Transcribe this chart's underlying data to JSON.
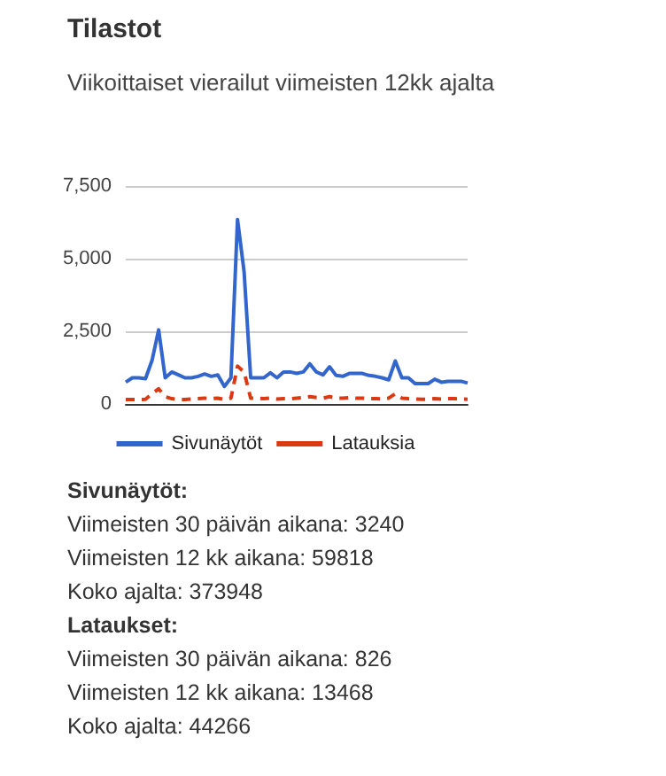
{
  "chart_data": {
    "type": "line",
    "title": "Tilastot",
    "subtitle": "Viikoittaiset vierailut viimeisten 12kk ajalta",
    "categories": [
      null,
      null,
      null,
      null,
      null,
      null,
      null,
      null,
      null,
      null,
      null,
      null,
      null,
      null,
      null,
      null,
      null,
      null,
      null,
      null,
      null,
      null,
      null,
      null,
      null,
      null,
      null,
      null,
      null,
      null,
      null,
      null,
      null,
      null,
      null,
      null,
      null,
      null,
      null,
      null,
      null,
      null,
      null,
      null,
      null,
      null,
      null,
      null,
      null,
      null,
      null,
      null,
      null
    ],
    "series": [
      {
        "name": "Sivunäytöt",
        "color": "#3366cc",
        "line_style": "solid",
        "values": [
          750,
          900,
          900,
          870,
          1500,
          2550,
          900,
          1100,
          1000,
          900,
          900,
          950,
          1030,
          950,
          1000,
          600,
          900,
          6350,
          4550,
          900,
          900,
          900,
          1070,
          900,
          1100,
          1100,
          1050,
          1100,
          1380,
          1100,
          1000,
          1280,
          980,
          950,
          1050,
          1050,
          1050,
          980,
          950,
          900,
          830,
          1480,
          900,
          900,
          700,
          700,
          700,
          850,
          750,
          780,
          780,
          780,
          720
        ]
      },
      {
        "name": "Latauksia",
        "color": "#dc3912",
        "line_style": "dashed",
        "values": [
          150,
          150,
          150,
          160,
          350,
          520,
          250,
          180,
          150,
          150,
          170,
          180,
          200,
          180,
          200,
          150,
          200,
          1300,
          1100,
          200,
          200,
          180,
          200,
          170,
          180,
          180,
          200,
          220,
          250,
          220,
          200,
          250,
          200,
          200,
          220,
          200,
          200,
          180,
          180,
          170,
          200,
          350,
          200,
          180,
          170,
          160,
          160,
          180,
          170,
          180,
          180,
          170,
          160
        ]
      }
    ],
    "ylim": [
      0,
      7500
    ],
    "yticks": [
      0,
      {
        "value": 2500,
        "label": "2,500"
      },
      {
        "value": 5000,
        "label": "5,000"
      },
      {
        "value": 7500,
        "label": "7,500"
      }
    ],
    "grid": "y",
    "legend": "bottom",
    "tick_labels": "y",
    "annotations": [
      "Sivunäytöt:",
      "Viimeisten 30 päivän aikana: 3240",
      "Viimeisten 12 kk aikana: 59818",
      "Koko ajalta: 373948",
      "Lataukset:",
      "Viimeisten 30 päivän aikana: 826",
      "Viimeisten 12 kk aikana: 13468",
      "Koko ajalta: 44266"
    ]
  }
}
